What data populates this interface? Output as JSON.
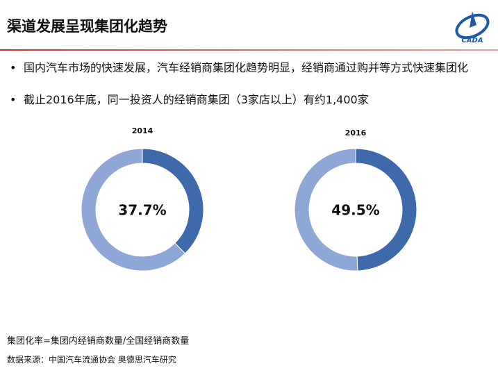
{
  "header": {
    "title": "渠道发展呈现集团化趋势",
    "logo_text": "CADA"
  },
  "bullets": [
    "国内汽车市场的快速发展，汽车经销商集团化趋势明显，经销商通过购并等方式快速集团化",
    "截止2016年底，同一投资人的经销商集团（3家店以上）有约1,400家"
  ],
  "chart_data": [
    {
      "type": "donut",
      "title": "2014",
      "values": [
        37.7,
        62.3
      ],
      "value_labels": [
        "37.7%",
        null
      ],
      "colors": [
        "#3e6aac",
        "#8ea7d6"
      ]
    },
    {
      "type": "donut",
      "title": "2016",
      "values": [
        49.5,
        50.5
      ],
      "value_labels": [
        "49.5%",
        null
      ],
      "colors": [
        "#3e6aac",
        "#8ea7d6"
      ]
    }
  ],
  "footnotes": [
    "集团化率=集团内经销商数量/全国经销商数量",
    "数据来源：中国汽车流通协会 奥德思汽车研究"
  ]
}
